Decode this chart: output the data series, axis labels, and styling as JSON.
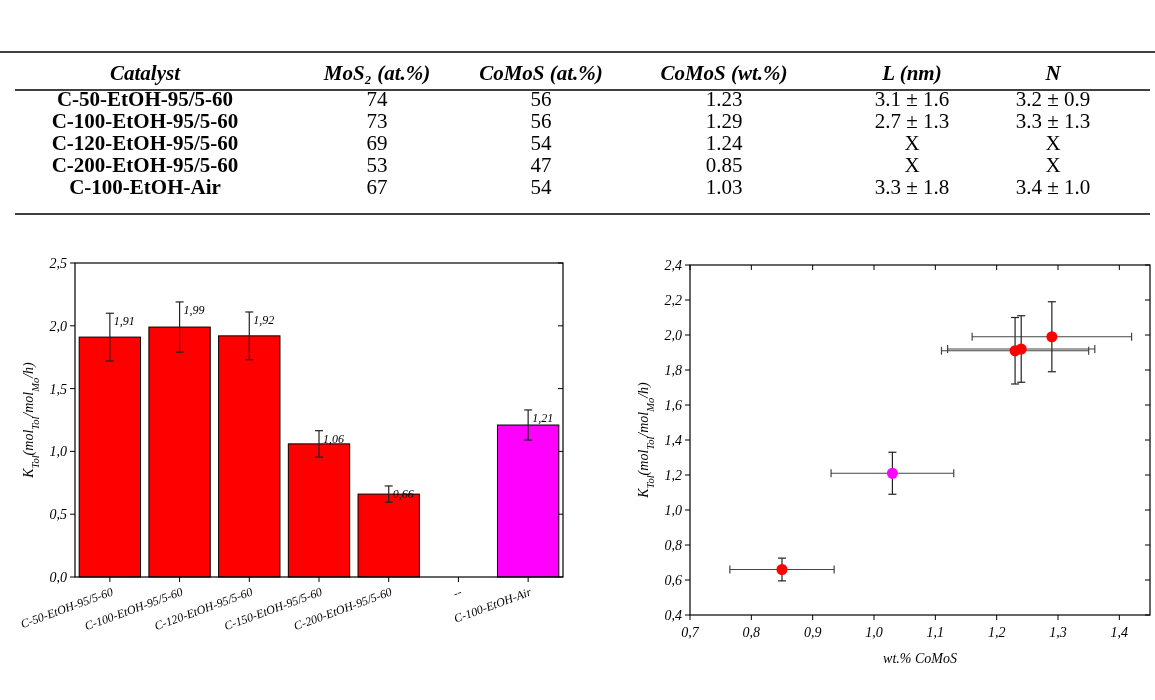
{
  "chart_data": [
    {
      "type": "other",
      "annotations": [
        "Catalyst",
        "MoS₂ (at.%)",
        "CoMoS (at.%)",
        "CoMoS (wt.%)",
        "L (nm)",
        "N",
        "C-50-EtOH-95/5-60",
        "74",
        "56",
        "1.23",
        "3.1 ± 1.6",
        "3.2 ± 0.9",
        "C-100-EtOH-95/5-60",
        "73",
        "56",
        "1.29",
        "2.7 ± 1.3",
        "3.3 ± 1.3",
        "C-120-EtOH-95/5-60",
        "69",
        "54",
        "1.24",
        "X",
        "X",
        "C-200-EtOH-95/5-60",
        "53",
        "47",
        "0.85",
        "X",
        "X",
        "C-100-EtOH-Air",
        "67",
        "54",
        "1.03",
        "3.3 ± 1.8",
        "3.4 ± 1.0"
      ]
    },
    {
      "type": "bar",
      "ylabel": "K$_{Tol}$(mol$_{Tol}$/mol$_{Mo}$/h)",
      "categories": [
        "C-50-EtOH-95/5-60",
        "C-100-EtOH-95/5-60",
        "C-120-EtOH-95/5-60",
        "C-150-EtOH-95/5-60",
        "C-200-EtOH-95/5-60",
        "--",
        "C-100-EtOH-Air"
      ],
      "values": [
        1.91,
        1.99,
        1.92,
        1.06,
        0.66,
        null,
        1.21
      ],
      "colors": [
        "#ff0000",
        "#ff0000",
        "#ff0000",
        "#ff0000",
        "#ff0000",
        null,
        "#ff00ff"
      ],
      "errors": [
        0.19,
        0.2,
        0.19,
        0.105,
        0.065,
        null,
        0.12
      ],
      "value_labels": [
        "1,91",
        "1,99",
        "1,92",
        "1,06",
        "0,66",
        null,
        "1,21"
      ],
      "ylim": [
        0,
        2.5
      ],
      "yticks": [
        {
          "value": 0,
          "label": "0,0"
        },
        {
          "value": 0.5,
          "label": "0,5"
        },
        {
          "value": 1,
          "label": "1,0"
        },
        {
          "value": 1.5,
          "label": "1,5"
        },
        {
          "value": 2,
          "label": "2,0"
        },
        {
          "value": 2.5,
          "label": "2,5"
        }
      ]
    },
    {
      "type": "scatter",
      "xlabel": "wt.% CoMoS",
      "ylabel": "K$_{Tol}$(mol$_{Tol}$/mol$_{Mo}$/h)",
      "x": [
        1.23,
        1.29,
        1.24,
        0.85,
        1.03
      ],
      "values": [
        1.91,
        1.99,
        1.92,
        0.66,
        1.21
      ],
      "colors": [
        "#ff0000",
        "#ff0000",
        "#ff0000",
        "#ff0000",
        "#ff00ff"
      ],
      "errors": [
        0.19,
        0.2,
        0.19,
        0.065,
        0.12
      ],
      "xerrors": [
        0.12,
        0.13,
        0.12,
        0.085,
        0.1
      ],
      "marker": "circle",
      "xlim": [
        0.7,
        1.45
      ],
      "ylim": [
        0.4,
        2.4
      ],
      "xticks": [
        {
          "value": 0.7,
          "label": "0,7"
        },
        {
          "value": 0.8,
          "label": "0,8"
        },
        {
          "value": 0.9,
          "label": "0,9"
        },
        {
          "value": 1,
          "label": "1,0"
        },
        {
          "value": 1.1,
          "label": "1,1"
        },
        {
          "value": 1.2,
          "label": "1,2"
        },
        {
          "value": 1.3,
          "label": "1,3"
        },
        {
          "value": 1.4,
          "label": "1,4"
        }
      ],
      "yticks": [
        {
          "value": 0.4,
          "label": "0,4"
        },
        {
          "value": 0.6,
          "label": "0,6"
        },
        {
          "value": 0.8,
          "label": "0,8"
        },
        {
          "value": 1,
          "label": "1,0"
        },
        {
          "value": 1.2,
          "label": "1,2"
        },
        {
          "value": 1.4,
          "label": "1,4"
        },
        {
          "value": 1.6,
          "label": "1,6"
        },
        {
          "value": 1.8,
          "label": "1,8"
        },
        {
          "value": 2,
          "label": "2,0"
        },
        {
          "value": 2.2,
          "label": "2,2"
        },
        {
          "value": 2.4,
          "label": "2,4"
        }
      ]
    }
  ]
}
